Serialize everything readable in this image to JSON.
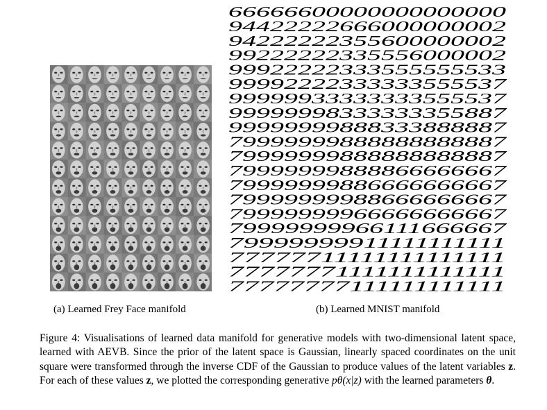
{
  "figure": {
    "panel_a": {
      "caption": "(a) Learned Frey Face manifold",
      "grid": {
        "rows": 12,
        "cols": 9
      }
    },
    "panel_b": {
      "caption": "(b) Learned MNIST manifold",
      "rows": [
        "66666600000000000000",
        "94422222666000000002",
        "94222222355600000002",
        "99222222335556000002",
        "99922222333555555533",
        "99992222333333555537",
        "99999933333333555537",
        "99999998333333355887",
        "99999999888333888887",
        "79999999888888888887",
        "79999999888888888887",
        "79999999888866666667",
        "79999999886666666667",
        "79999999988666666667",
        "79999999966666666667",
        "79999999966111666667",
        "79999999911111111111",
        "77777711111111111111",
        "77777771111111111111",
        "77777777111111111111"
      ]
    },
    "caption": {
      "prefix": "Figure 4: Visualisations of learned data manifold for generative models with two-dimensional latent space, learned with AEVB. Since the prior of the latent space is Gaussian, linearly spaced coordinates on the unit square were transformed through the inverse CDF of the Gaussian to produce values of the latent variables ",
      "z1": "z",
      "mid1": ". For each of these values ",
      "z2": "z",
      "mid2": ", we plotted the corresponding generative ",
      "math": "pθ(x|z)",
      "mid3": " with the learned parameters ",
      "theta": "θ",
      "suffix": "."
    }
  }
}
